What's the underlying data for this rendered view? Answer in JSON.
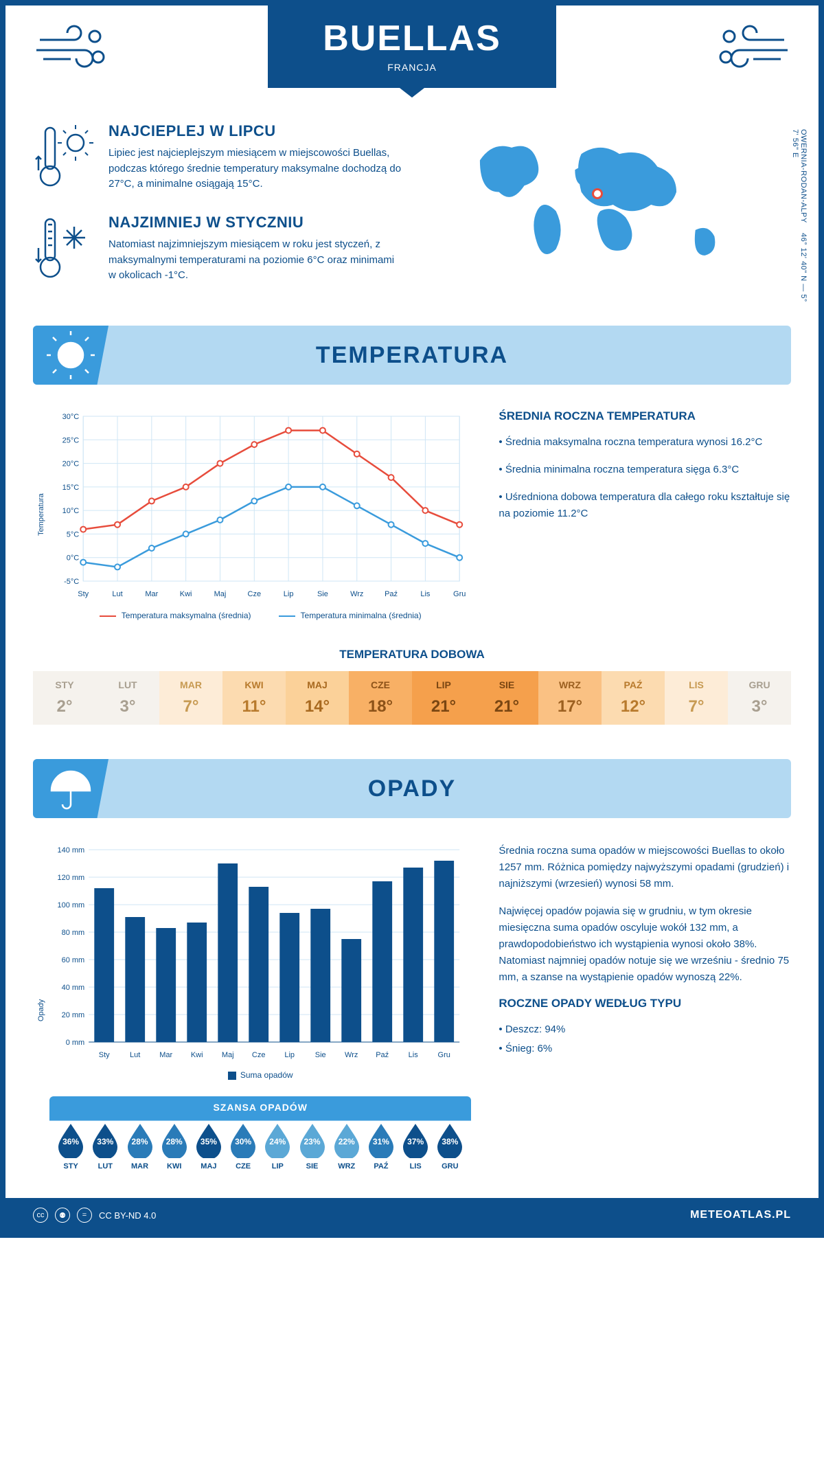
{
  "header": {
    "city": "BUELLAS",
    "country": "FRANCJA"
  },
  "coords": "46° 12' 40\" N — 5° 7' 56\" E",
  "region": "OWERNIA-RODAN-ALPY",
  "map_pin": {
    "left_pct": 46,
    "top_pct": 36
  },
  "facts": [
    {
      "title": "NAJCIEPLEJ W LIPCU",
      "text": "Lipiec jest najcieplejszym miesiącem w miejscowości Buellas, podczas którego średnie temperatury maksymalne dochodzą do 27°C, a minimalne osiągają 15°C."
    },
    {
      "title": "NAJZIMNIEJ W STYCZNIU",
      "text": "Natomiast najzimniejszym miesiącem w roku jest styczeń, z maksymalnymi temperaturami na poziomie 6°C oraz minimami w okolicach -1°C."
    }
  ],
  "temperature": {
    "section_title": "TEMPERATURA",
    "months": [
      "Sty",
      "Lut",
      "Mar",
      "Kwi",
      "Maj",
      "Cze",
      "Lip",
      "Sie",
      "Wrz",
      "Paź",
      "Lis",
      "Gru"
    ],
    "y_min": -5,
    "y_max": 30,
    "y_step": 5,
    "y_label": "Temperatura",
    "max_values": [
      6,
      7,
      12,
      15,
      20,
      24,
      27,
      27,
      22,
      17,
      10,
      7
    ],
    "min_values": [
      -1,
      -2,
      2,
      5,
      8,
      12,
      15,
      15,
      11,
      7,
      3,
      0
    ],
    "max_color": "#e74c3c",
    "min_color": "#3a9bdc",
    "grid_color": "#cfe6f5",
    "bg": "#ffffff",
    "axis_font": 11,
    "legend_max": "Temperatura maksymalna (średnia)",
    "legend_min": "Temperatura minimalna (średnia)",
    "info_title": "ŚREDNIA ROCZNA TEMPERATURA",
    "info_bullets": [
      "• Średnia maksymalna roczna temperatura wynosi 16.2°C",
      "• Średnia minimalna roczna temperatura sięga 6.3°C",
      "• Uśredniona dobowa temperatura dla całego roku kształtuje się na poziomie 11.2°C"
    ]
  },
  "daily": {
    "title": "TEMPERATURA DOBOWA",
    "months": [
      "STY",
      "LUT",
      "MAR",
      "KWI",
      "MAJ",
      "CZE",
      "LIP",
      "SIE",
      "WRZ",
      "PAŹ",
      "LIS",
      "GRU"
    ],
    "values": [
      "2°",
      "3°",
      "7°",
      "11°",
      "14°",
      "18°",
      "21°",
      "21°",
      "17°",
      "12°",
      "7°",
      "3°"
    ],
    "colors": [
      "#f5f2ed",
      "#f5f2ed",
      "#fdecd7",
      "#fcdbb0",
      "#fbd199",
      "#f8b065",
      "#f5a04c",
      "#f5a04c",
      "#fac183",
      "#fcdbb0",
      "#fdecd7",
      "#f5f2ed"
    ],
    "text_colors": [
      "#a89f90",
      "#a89f90",
      "#c79a52",
      "#b87a2c",
      "#a8691f",
      "#8c5218",
      "#7a4612",
      "#7a4612",
      "#9c6020",
      "#b87a2c",
      "#c79a52",
      "#a89f90"
    ]
  },
  "precip": {
    "section_title": "OPADY",
    "months": [
      "Sty",
      "Lut",
      "Mar",
      "Kwi",
      "Maj",
      "Cze",
      "Lip",
      "Sie",
      "Wrz",
      "Paź",
      "Lis",
      "Gru"
    ],
    "values": [
      112,
      91,
      83,
      87,
      130,
      113,
      94,
      97,
      75,
      117,
      127,
      132
    ],
    "y_min": 0,
    "y_max": 140,
    "y_step": 20,
    "y_label": "Opady",
    "bar_color": "#0d4f8b",
    "grid_color": "#cfe6f5",
    "legend": "Suma opadów",
    "info_p1": "Średnia roczna suma opadów w miejscowości Buellas to około 1257 mm. Różnica pomiędzy najwyższymi opadami (grudzień) i najniższymi (wrzesień) wynosi 58 mm.",
    "info_p2": "Najwięcej opadów pojawia się w grudniu, w tym okresie miesięczna suma opadów oscyluje wokół 132 mm, a prawdopodobieństwo ich wystąpienia wynosi około 38%. Natomiast najmniej opadów notuje się we wrześniu - średnio 75 mm, a szanse na wystąpienie opadów wynoszą 22%.",
    "type_title": "ROCZNE OPADY WEDŁUG TYPU",
    "type_bullets": [
      "• Deszcz: 94%",
      "• Śnieg: 6%"
    ]
  },
  "chance": {
    "title": "SZANSA OPADÓW",
    "months": [
      "STY",
      "LUT",
      "MAR",
      "KWI",
      "MAJ",
      "CZE",
      "LIP",
      "SIE",
      "WRZ",
      "PAŹ",
      "LIS",
      "GRU"
    ],
    "values": [
      "36%",
      "33%",
      "28%",
      "28%",
      "35%",
      "30%",
      "24%",
      "23%",
      "22%",
      "31%",
      "37%",
      "38%"
    ],
    "colors": [
      "#0d4f8b",
      "#0d4f8b",
      "#2a7bb8",
      "#2a7bb8",
      "#0d4f8b",
      "#2a7bb8",
      "#5ba8d6",
      "#5ba8d6",
      "#5ba8d6",
      "#2a7bb8",
      "#0d4f8b",
      "#0d4f8b"
    ]
  },
  "footer": {
    "license": "CC BY-ND 4.0",
    "site": "METEOATLAS.PL"
  }
}
